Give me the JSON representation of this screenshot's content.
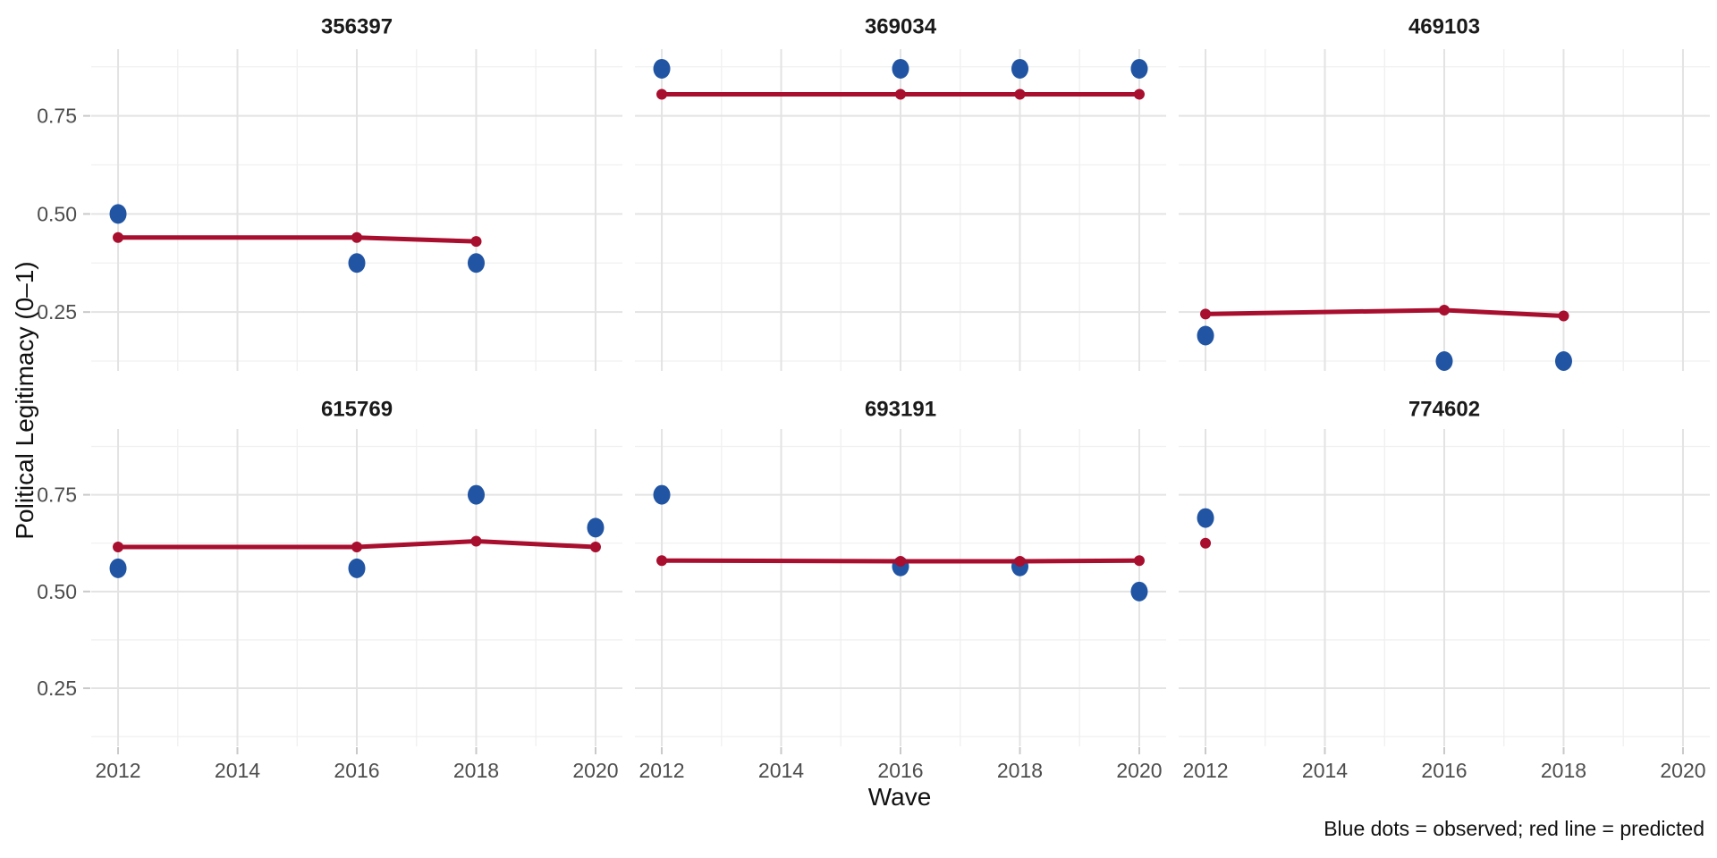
{
  "figure": {
    "y_axis_title": "Political Legitimacy (0–1)",
    "x_axis_title": "Wave",
    "caption": "Blue dots = observed; red line = predicted"
  },
  "colors": {
    "observed_blue": "#2155A3",
    "predicted_red": "#A80E2E",
    "grid_major": "#E3E3E3",
    "grid_minor": "#F0F0F0",
    "tick_mark": "#C9C9C9",
    "axis_text": "#4D4D4D",
    "strip_text": "#1A1A1A",
    "panel_background": "#FFFFFF"
  },
  "chart_data": {
    "type": "scatter",
    "title": "",
    "xlabel": "Wave",
    "ylabel": "Political Legitimacy (0–1)",
    "legend_note": "Blue dots = observed; red line = predicted",
    "x_range": [
      2011.55,
      2020.45
    ],
    "y_range": [
      0.1,
      0.92
    ],
    "x_major_ticks": [
      2012,
      2014,
      2016,
      2018,
      2020
    ],
    "x_tick_labels": [
      "2012",
      "2014",
      "2016",
      "2018",
      "2020"
    ],
    "x_minor_ticks": [
      2013,
      2015,
      2017,
      2019
    ],
    "y_major_ticks": [
      0.75,
      0.5,
      0.25
    ],
    "y_tick_labels": [
      "0.75",
      "0.50",
      "0.25"
    ],
    "y_minor_ticks": [
      0.875,
      0.625,
      0.375,
      0.125
    ],
    "grid": "on",
    "facets": [
      {
        "id": "356397",
        "observed": {
          "x": [
            2012,
            2016,
            2018
          ],
          "y": [
            0.5,
            0.375,
            0.375
          ]
        },
        "predicted": {
          "x": [
            2012,
            2016,
            2018
          ],
          "y": [
            0.44,
            0.44,
            0.43
          ]
        }
      },
      {
        "id": "369034",
        "observed": {
          "x": [
            2012,
            2016,
            2018,
            2020
          ],
          "y": [
            0.87,
            0.87,
            0.87,
            0.87
          ]
        },
        "predicted": {
          "x": [
            2012,
            2016,
            2018,
            2020
          ],
          "y": [
            0.805,
            0.805,
            0.805,
            0.805
          ]
        }
      },
      {
        "id": "469103",
        "observed": {
          "x": [
            2012,
            2016,
            2018
          ],
          "y": [
            0.19,
            0.125,
            0.125
          ]
        },
        "predicted": {
          "x": [
            2012,
            2016,
            2018
          ],
          "y": [
            0.245,
            0.255,
            0.24
          ]
        }
      },
      {
        "id": "615769",
        "observed": {
          "x": [
            2012,
            2016,
            2018,
            2020
          ],
          "y": [
            0.56,
            0.56,
            0.75,
            0.665
          ]
        },
        "predicted": {
          "x": [
            2012,
            2016,
            2018,
            2020
          ],
          "y": [
            0.615,
            0.615,
            0.63,
            0.615
          ]
        }
      },
      {
        "id": "693191",
        "observed": {
          "x": [
            2012,
            2016,
            2018,
            2020
          ],
          "y": [
            0.75,
            0.565,
            0.565,
            0.5
          ]
        },
        "predicted": {
          "x": [
            2012,
            2016,
            2018,
            2020
          ],
          "y": [
            0.58,
            0.578,
            0.578,
            0.58
          ]
        }
      },
      {
        "id": "774602",
        "observed": {
          "x": [
            2012
          ],
          "y": [
            0.69
          ]
        },
        "predicted": {
          "x": [
            2012
          ],
          "y": [
            0.625
          ]
        }
      }
    ]
  }
}
